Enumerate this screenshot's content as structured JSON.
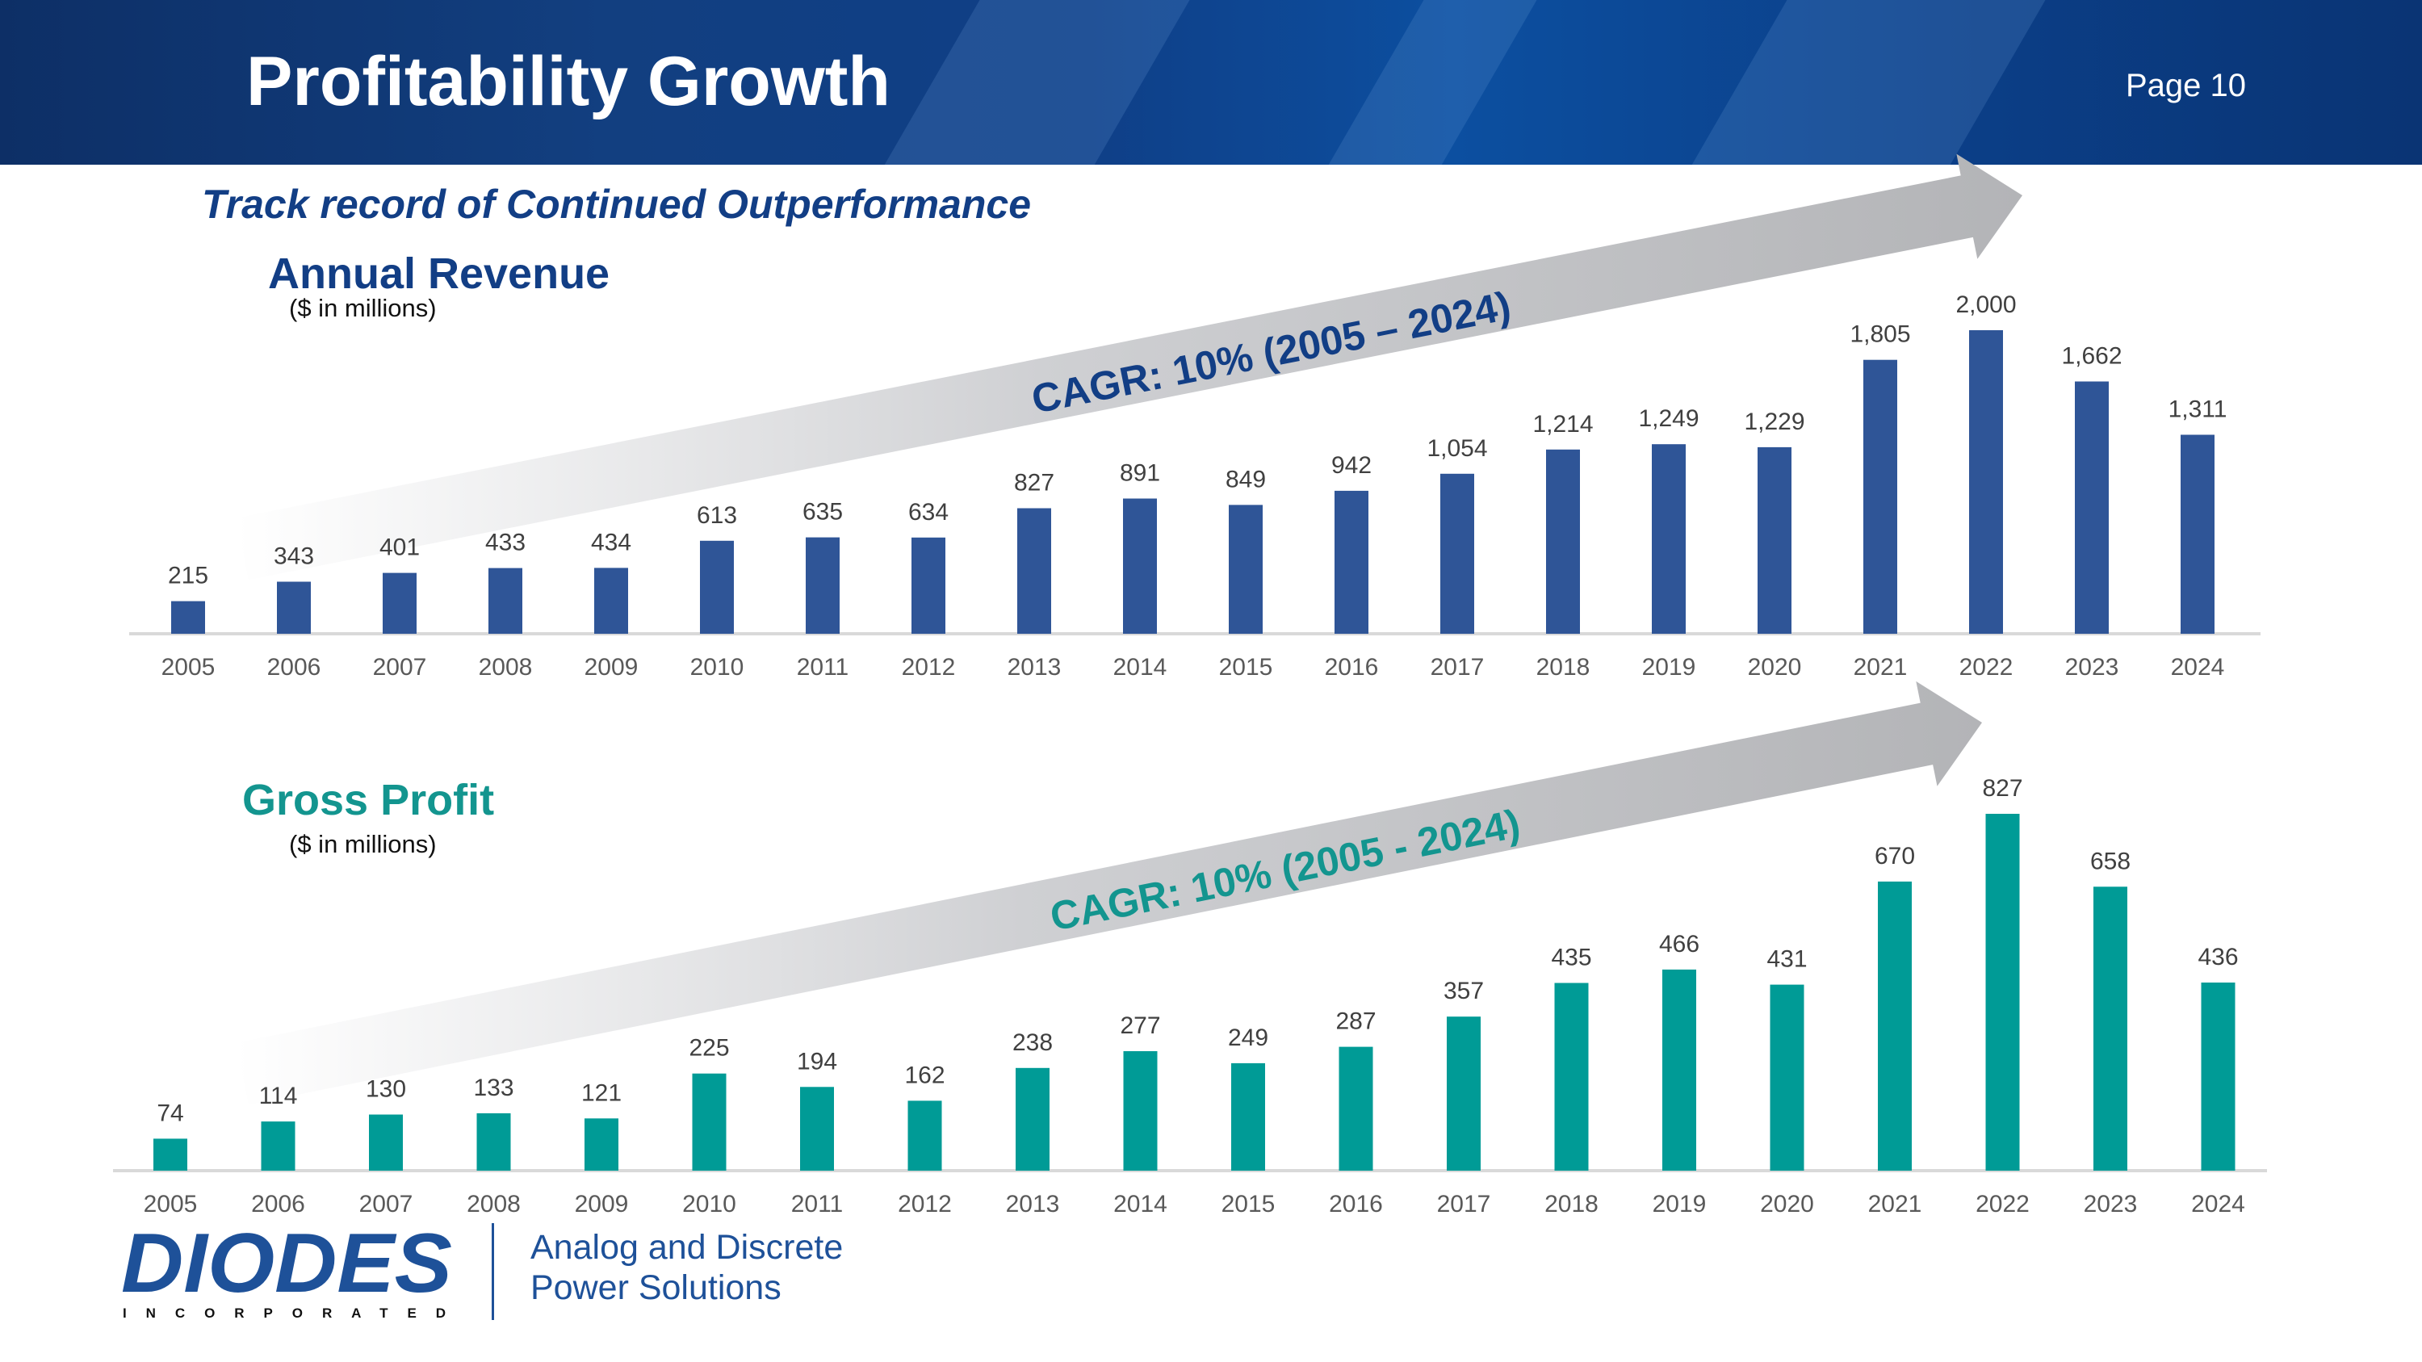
{
  "header": {
    "title": "Profitability Growth",
    "page_label": "Page 10"
  },
  "subtitle": "Track record of Continued Outperformance",
  "colors": {
    "revenue_bar": "#2f5597",
    "profit_bar": "#009b96",
    "header_blue": "#0d3a7a",
    "navy_text": "#123e85",
    "teal_text": "#13958f",
    "arrow_gray": "#b9babd"
  },
  "chart_data": [
    {
      "type": "bar",
      "title": "Annual Revenue",
      "unit_note": "($ in millions)",
      "categories": [
        "2005",
        "2006",
        "2007",
        "2008",
        "2009",
        "2010",
        "2011",
        "2012",
        "2013",
        "2014",
        "2015",
        "2016",
        "2017",
        "2018",
        "2019",
        "2020",
        "2021",
        "2022",
        "2023",
        "2024"
      ],
      "values": [
        215,
        343,
        401,
        433,
        434,
        613,
        635,
        634,
        827,
        891,
        849,
        942,
        1054,
        1214,
        1249,
        1229,
        1805,
        2000,
        1662,
        1311
      ],
      "value_labels": [
        "215",
        "343",
        "401",
        "433",
        "434",
        "613",
        "635",
        "634",
        "827",
        "891",
        "849",
        "942",
        "1,054",
        "1,214",
        "1,249",
        "1,229",
        "1,805",
        "2,000",
        "1,662",
        "1,311"
      ],
      "annotation": "CAGR: 10% (2005 – 2024)",
      "ylim": [
        0,
        2000
      ]
    },
    {
      "type": "bar",
      "title": "Gross Profit",
      "unit_note": "($ in millions)",
      "categories": [
        "2005",
        "2006",
        "2007",
        "2008",
        "2009",
        "2010",
        "2011",
        "2012",
        "2013",
        "2014",
        "2015",
        "2016",
        "2017",
        "2018",
        "2019",
        "2020",
        "2021",
        "2022",
        "2023",
        "2024"
      ],
      "values": [
        74,
        114,
        130,
        133,
        121,
        225,
        194,
        162,
        238,
        277,
        249,
        287,
        357,
        435,
        466,
        431,
        670,
        827,
        658,
        436
      ],
      "value_labels": [
        "74",
        "114",
        "130",
        "133",
        "121",
        "225",
        "194",
        "162",
        "238",
        "277",
        "249",
        "287",
        "357",
        "435",
        "466",
        "431",
        "670",
        "827",
        "658",
        "436"
      ],
      "annotation": "CAGR: 10% (2005 - 2024)",
      "ylim": [
        0,
        827
      ]
    }
  ],
  "footer": {
    "logo_text": "DIODES",
    "logo_subtext": "INCORPORATED",
    "tagline_line1": "Analog and Discrete",
    "tagline_line2": "Power Solutions"
  }
}
